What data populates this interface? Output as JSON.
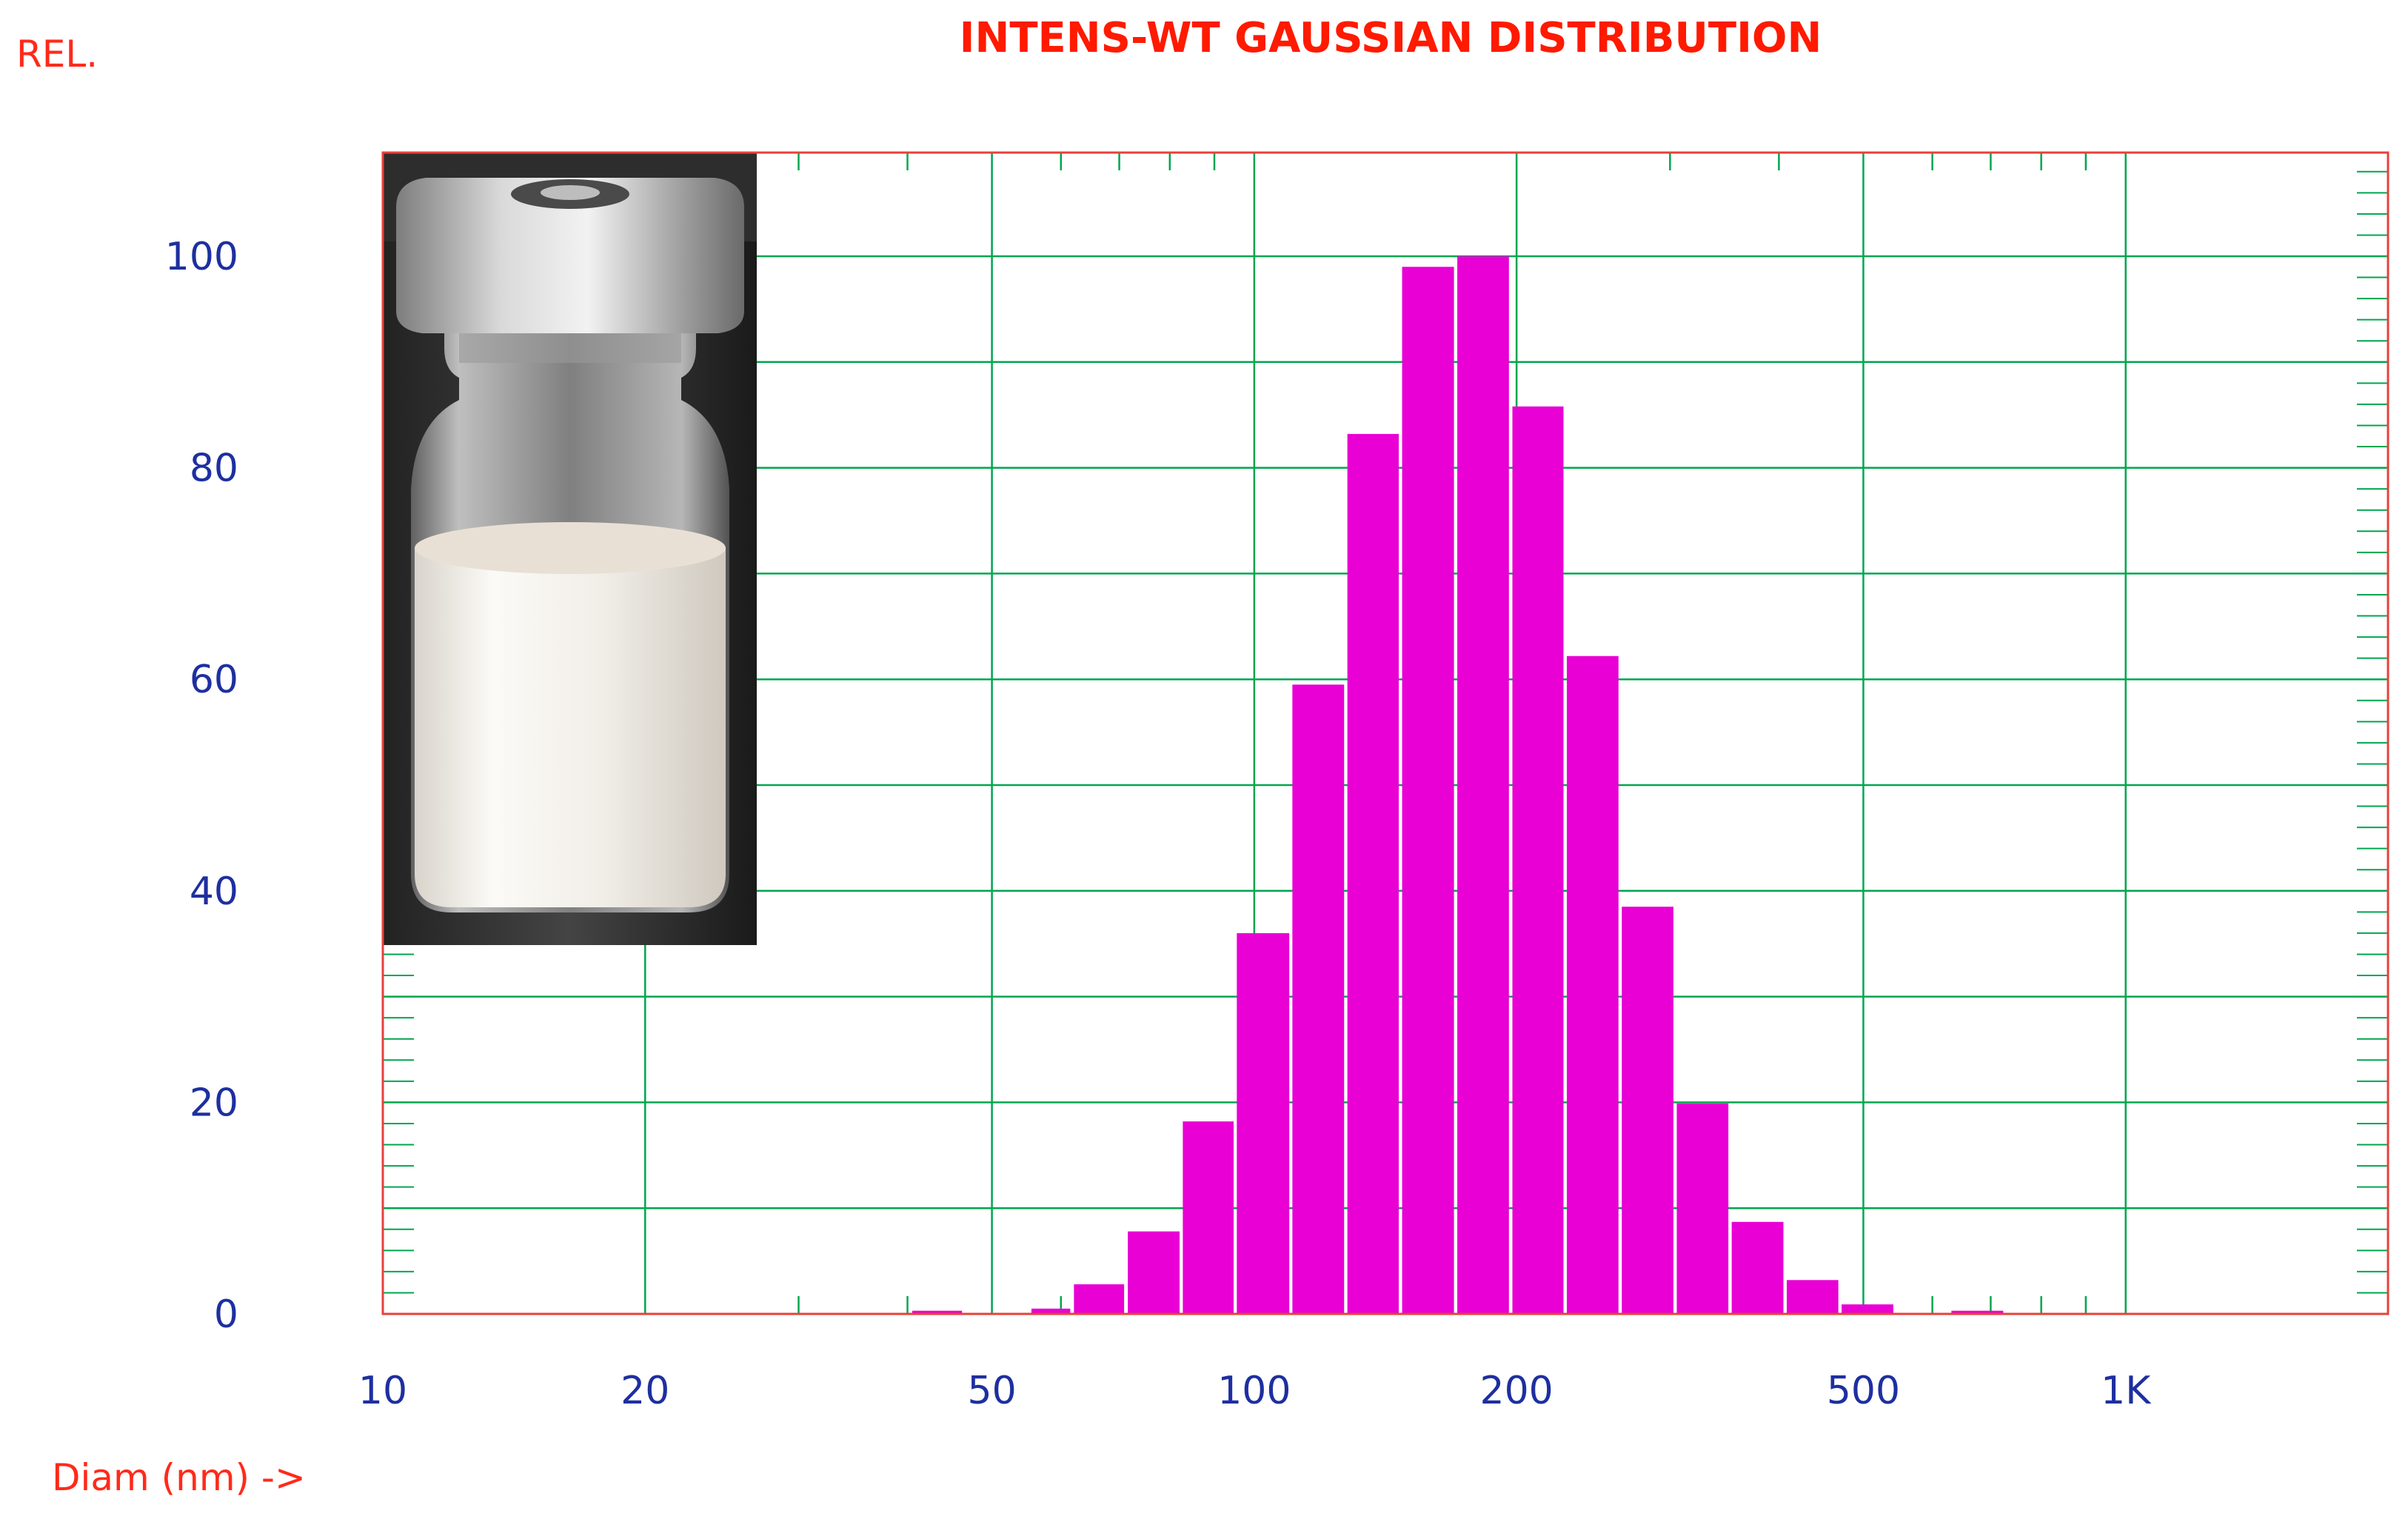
{
  "chart_data": {
    "type": "bar",
    "title": "INTENS-WT GAUSSIAN DISTRIBUTION",
    "ylabel": "REL.",
    "xlabel": "Diam (nm) ->",
    "x_scale": "log",
    "xlim": [
      10,
      2000
    ],
    "ylim": [
      0,
      100
    ],
    "x_ticks": [
      {
        "value": 10,
        "label": "10"
      },
      {
        "value": 20,
        "label": "20"
      },
      {
        "value": 50,
        "label": "50"
      },
      {
        "value": 100,
        "label": "100"
      },
      {
        "value": 200,
        "label": "200"
      },
      {
        "value": 500,
        "label": "500"
      },
      {
        "value": 1000,
        "label": "1K"
      }
    ],
    "y_ticks": [
      {
        "value": 0,
        "label": "0"
      },
      {
        "value": 20,
        "label": "20"
      },
      {
        "value": 40,
        "label": "40"
      },
      {
        "value": 60,
        "label": "60"
      },
      {
        "value": 80,
        "label": "80"
      },
      {
        "value": 100,
        "label": "100"
      }
    ],
    "grid": true,
    "bars": [
      {
        "from": 40.5,
        "to": 46.2,
        "value": 0.3
      },
      {
        "from": 55.5,
        "to": 61.5,
        "value": 0.5
      },
      {
        "from": 62.1,
        "to": 70.9,
        "value": 2.8
      },
      {
        "from": 71.6,
        "to": 82.1,
        "value": 7.8
      },
      {
        "from": 82.8,
        "to": 94.7,
        "value": 18.2
      },
      {
        "from": 95.5,
        "to": 109.7,
        "value": 36.0
      },
      {
        "from": 110.6,
        "to": 126.8,
        "value": 59.5
      },
      {
        "from": 127.9,
        "to": 146.5,
        "value": 83.2
      },
      {
        "from": 147.8,
        "to": 169.5,
        "value": 99.0
      },
      {
        "from": 171.0,
        "to": 196.0,
        "value": 100.0
      },
      {
        "from": 197.8,
        "to": 226.4,
        "value": 85.8
      },
      {
        "from": 228.4,
        "to": 261.8,
        "value": 62.2
      },
      {
        "from": 264.1,
        "to": 302.7,
        "value": 38.5
      },
      {
        "from": 305.4,
        "to": 350.0,
        "value": 19.9
      },
      {
        "from": 353.1,
        "to": 404.8,
        "value": 8.7
      },
      {
        "from": 408.4,
        "to": 468.0,
        "value": 3.2
      },
      {
        "from": 472.1,
        "to": 541.2,
        "value": 0.9
      },
      {
        "from": 631.0,
        "to": 723.6,
        "value": 0.3
      }
    ],
    "colors": {
      "bars": "#e800d4",
      "grid": "#00a64f",
      "frame": "#e8413a",
      "title": "#ff1a00",
      "tick_labels": "#1e2fa0",
      "axis_titles": "#ff2a1a"
    }
  }
}
